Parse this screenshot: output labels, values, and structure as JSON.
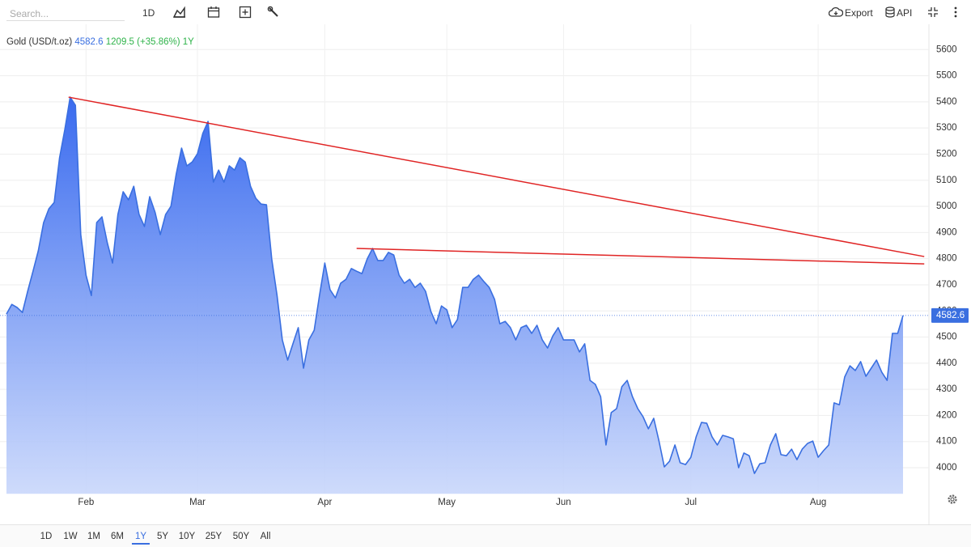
{
  "toolbar": {
    "search_placeholder": "Search...",
    "interval": "1D",
    "export": "Export",
    "api": "API"
  },
  "legend": {
    "symbol": "Gold (USD/t.oz)",
    "change": "1209.5",
    "change_percent": "(+35.86%)",
    "period": "1Y"
  },
  "chart_data": {
    "type": "area",
    "color": "#3a6fe0",
    "categories": [
      null,
      null,
      null,
      null,
      null,
      null,
      null,
      null,
      null,
      null,
      null,
      null,
      null,
      null,
      null,
      "Feb",
      null,
      null,
      null,
      null,
      null,
      null,
      null,
      null,
      null,
      null,
      null,
      null,
      null,
      null,
      null,
      null,
      null,
      null,
      null,
      null,
      "Mar",
      null,
      null,
      null,
      null,
      null,
      null,
      null,
      null,
      null,
      null,
      null,
      null,
      null,
      null,
      null,
      null,
      null,
      null,
      null,
      null,
      null,
      null,
      null,
      "Apr",
      null,
      null,
      null,
      null,
      null,
      null,
      null,
      null,
      null,
      null,
      null,
      null,
      null,
      null,
      null,
      null,
      null,
      null,
      null,
      null,
      null,
      null,
      "May",
      null,
      null,
      null,
      null,
      null,
      null,
      null,
      null,
      null,
      null,
      null,
      null,
      null,
      null,
      null,
      null,
      null,
      null,
      null,
      null,
      null,
      "Jun",
      null,
      null,
      null,
      null,
      null,
      null,
      null,
      null,
      null,
      null,
      null,
      null,
      null,
      null,
      null,
      null,
      null,
      null,
      null,
      null,
      null,
      null,
      null,
      "Jul",
      null,
      null,
      null,
      null,
      null,
      null,
      null,
      null,
      null,
      null,
      null,
      null,
      null,
      null,
      null,
      null,
      null,
      null,
      null,
      null,
      null,
      null,
      null,
      "Aug",
      null,
      null,
      null,
      null,
      null,
      null,
      null,
      null,
      null,
      null,
      null,
      null,
      null,
      null,
      null,
      null
    ],
    "values": [
      4588,
      4625,
      4613,
      4594,
      4675,
      4752,
      4830,
      4938,
      4991,
      5015,
      5186,
      5294,
      5418,
      5387,
      4892,
      4737,
      4659,
      4938,
      4960,
      4861,
      4783,
      4969,
      5056,
      5025,
      5077,
      4969,
      4923,
      5037,
      4978,
      4892,
      4969,
      5000,
      5124,
      5223,
      5155,
      5170,
      5201,
      5279,
      5325,
      5093,
      5139,
      5093,
      5155,
      5139,
      5186,
      5170,
      5077,
      5031,
      5009,
      5006,
      4799,
      4659,
      4489,
      4412,
      4474,
      4536,
      4381,
      4489,
      4526,
      4659,
      4783,
      4681,
      4650,
      4706,
      4721,
      4762,
      4752,
      4743,
      4799,
      4839,
      4793,
      4793,
      4824,
      4814,
      4737,
      4706,
      4721,
      4690,
      4706,
      4675,
      4598,
      4551,
      4619,
      4604,
      4536,
      4567,
      4690,
      4690,
      4721,
      4737,
      4712,
      4690,
      4644,
      4551,
      4560,
      4536,
      4489,
      4536,
      4545,
      4514,
      4545,
      4489,
      4458,
      4505,
      4536,
      4489,
      4489,
      4489,
      4443,
      4474,
      4334,
      4319,
      4272,
      4087,
      4211,
      4226,
      4310,
      4334,
      4272,
      4226,
      4195,
      4149,
      4189,
      4102,
      4003,
      4025,
      4087,
      4019,
      4012,
      4040,
      4118,
      4173,
      4170,
      4118,
      4087,
      4124,
      4118,
      4111,
      4000,
      4056,
      4046,
      3978,
      4015,
      4019,
      4087,
      4130,
      4050,
      4046,
      4071,
      4031,
      4071,
      4093,
      4102,
      4040,
      4065,
      4087,
      4248,
      4241,
      4347,
      4390,
      4372,
      4406,
      4350,
      4381,
      4412,
      4365,
      4334,
      4514,
      4514,
      4582.6
    ],
    "ylim": [
      3900,
      5700
    ],
    "yticks": [
      4000,
      4100,
      4200,
      4300,
      4400,
      4500,
      4600,
      4700,
      4800,
      4900,
      5000,
      5100,
      5200,
      5300,
      5400,
      5500,
      5600
    ],
    "grid": true,
    "trendlines": [
      {
        "color": "#e02424",
        "x": [
          11.7,
          173
        ],
        "values": [
          5418,
          4808
        ]
      },
      {
        "color": "#e02424",
        "x": [
          66,
          173
        ],
        "values": [
          4839,
          4780
        ]
      }
    ]
  },
  "range_selector": {
    "options": [
      "1D",
      "1W",
      "1M",
      "6M",
      "1Y",
      "5Y",
      "10Y",
      "25Y",
      "50Y",
      "All"
    ],
    "selected": "1Y"
  }
}
